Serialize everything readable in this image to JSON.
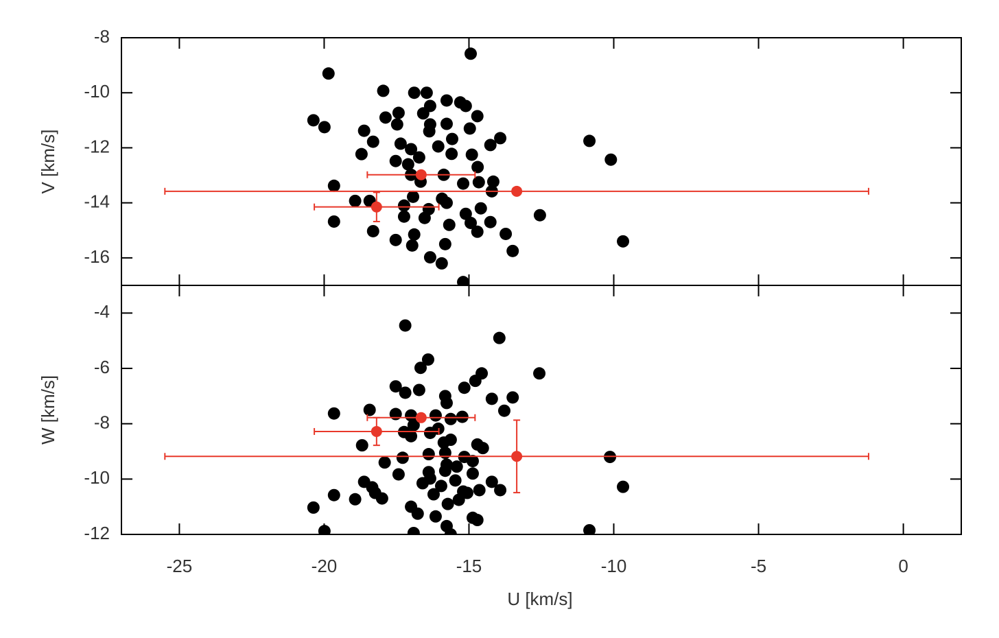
{
  "chart_data": [
    {
      "type": "scatter",
      "ylabel": "V [km/s]",
      "xlim": [
        -27,
        2
      ],
      "ylim": [
        -17,
        -8
      ],
      "yticks": [
        -16,
        -14,
        -12,
        -10,
        -8
      ],
      "series": [
        {
          "color": "#000000",
          "x": [
            -14.94,
            -19.85,
            -17.96,
            -16.89,
            -16.46,
            -15.3,
            -15.77,
            -15.11,
            -16.34,
            -17.43,
            -16.58,
            -14.71,
            -17.88,
            -20.37,
            -19.99,
            -17.48,
            -15.77,
            -16.34,
            -14.97,
            -18.62,
            -18.31,
            -16.37,
            -15.58,
            -13.92,
            -14.26,
            -10.84,
            -17.36,
            -17.0,
            -16.06,
            -16.72,
            -18.71,
            -14.9,
            -10.1,
            -17.53,
            -17.1,
            -15.6,
            -14.7,
            -15.87,
            -17.0,
            -16.67,
            -15.2,
            -14.66,
            -14.16,
            -19.66,
            -14.21,
            -16.93,
            -18.93,
            -18.43,
            -15.93,
            -15.77,
            -16.39,
            -14.59,
            -17.24,
            -16.53,
            -17.24,
            -15.11,
            -14.94,
            -15.68,
            -14.26,
            -19.66,
            -12.55,
            -18.31,
            -16.89,
            -14.71,
            -13.73,
            -17.53,
            -16.96,
            -15.82,
            -9.68,
            -13.49,
            -16.34,
            -15.94,
            -15.2
          ],
          "y": [
            -8.58,
            -9.3,
            -9.93,
            -10.0,
            -10.0,
            -10.35,
            -10.28,
            -10.48,
            -10.48,
            -10.73,
            -10.75,
            -10.85,
            -10.9,
            -11.0,
            -11.25,
            -11.15,
            -11.13,
            -11.15,
            -11.3,
            -11.38,
            -11.78,
            -11.4,
            -11.68,
            -11.65,
            -11.9,
            -11.75,
            -11.85,
            -12.05,
            -11.95,
            -12.35,
            -12.23,
            -12.25,
            -12.43,
            -12.48,
            -12.6,
            -12.22,
            -12.7,
            -12.98,
            -12.98,
            -13.23,
            -13.3,
            -13.25,
            -13.23,
            -13.38,
            -13.58,
            -13.78,
            -13.93,
            -13.93,
            -13.85,
            -14.0,
            -14.23,
            -14.2,
            -14.1,
            -14.55,
            -14.5,
            -14.4,
            -14.73,
            -14.8,
            -14.7,
            -14.68,
            -14.45,
            -15.03,
            -15.15,
            -15.05,
            -15.13,
            -15.35,
            -15.55,
            -15.5,
            -15.4,
            -15.75,
            -15.98,
            -16.2,
            -16.88
          ]
        },
        {
          "color": "#e8382a",
          "x": [
            -16.65,
            -13.35,
            -18.19
          ],
          "y": [
            -12.98,
            -13.58,
            -14.15
          ],
          "xerr": [
            1.86,
            12.15,
            2.15
          ],
          "yerr": [
            0,
            0,
            0.53
          ]
        }
      ]
    },
    {
      "type": "scatter",
      "ylabel": "W [km/s]",
      "xlabel": "U [km/s]",
      "xlim": [
        -27,
        2
      ],
      "ylim": [
        -12,
        -3
      ],
      "xticks": [
        -25,
        -20,
        -15,
        -10,
        -5,
        0
      ],
      "yticks": [
        -12,
        -10,
        -8,
        -6,
        -4
      ],
      "series": [
        {
          "color": "#000000",
          "x": [
            -17.2,
            -13.95,
            -16.41,
            -16.67,
            -12.57,
            -14.56,
            -14.78,
            -15.16,
            -17.53,
            -16.72,
            -17.2,
            -15.82,
            -14.21,
            -13.49,
            -15.77,
            -18.43,
            -19.66,
            -13.78,
            -17.53,
            -17.0,
            -16.15,
            -15.63,
            -15.23,
            -16.91,
            -16.06,
            -17.24,
            -17.0,
            -16.34,
            -15.63,
            -15.87,
            -14.71,
            -14.52,
            -18.69,
            -15.82,
            -16.39,
            -15.16,
            -17.29,
            -14.87,
            -10.13,
            -15.77,
            -15.42,
            -17.91,
            -16.39,
            -15.82,
            -14.87,
            -17.43,
            -16.34,
            -15.47,
            -18.62,
            -14.21,
            -9.68,
            -18.34,
            -16.6,
            -15.96,
            -15.2,
            -14.64,
            -13.92,
            -18.24,
            -16.22,
            -19.66,
            -18.0,
            -18.93,
            -15.06,
            -15.35,
            -15.73,
            -17.0,
            -16.77,
            -20.37,
            -14.87,
            -16.15,
            -15.77,
            -14.71,
            -19.99,
            -16.91,
            -10.84,
            -15.63
          ],
          "y": [
            -4.45,
            -4.9,
            -5.68,
            -5.98,
            -6.18,
            -6.18,
            -6.45,
            -6.7,
            -6.65,
            -6.78,
            -6.88,
            -7.0,
            -7.1,
            -7.05,
            -7.25,
            -7.5,
            -7.63,
            -7.53,
            -7.65,
            -7.7,
            -7.7,
            -7.83,
            -7.75,
            -8.05,
            -8.18,
            -8.3,
            -8.45,
            -8.33,
            -8.58,
            -8.68,
            -8.75,
            -8.88,
            -8.78,
            -9.05,
            -9.1,
            -9.2,
            -9.23,
            -9.35,
            -9.2,
            -9.48,
            -9.55,
            -9.4,
            -9.75,
            -9.7,
            -9.8,
            -9.83,
            -9.98,
            -10.05,
            -10.1,
            -10.1,
            -10.28,
            -10.3,
            -10.15,
            -10.25,
            -10.45,
            -10.4,
            -10.4,
            -10.5,
            -10.55,
            -10.58,
            -10.7,
            -10.73,
            -10.5,
            -10.75,
            -10.9,
            -11.0,
            -11.25,
            -11.03,
            -11.4,
            -11.35,
            -11.7,
            -11.48,
            -11.88,
            -11.95,
            -11.85,
            -12.0
          ]
        },
        {
          "color": "#e8382a",
          "x": [
            -16.65,
            -13.35,
            -18.19
          ],
          "y": [
            -7.78,
            -9.18,
            -8.28
          ],
          "xerr": [
            1.86,
            12.15,
            2.15
          ],
          "yerr": [
            0.1,
            1.31,
            0.5
          ]
        }
      ]
    }
  ]
}
